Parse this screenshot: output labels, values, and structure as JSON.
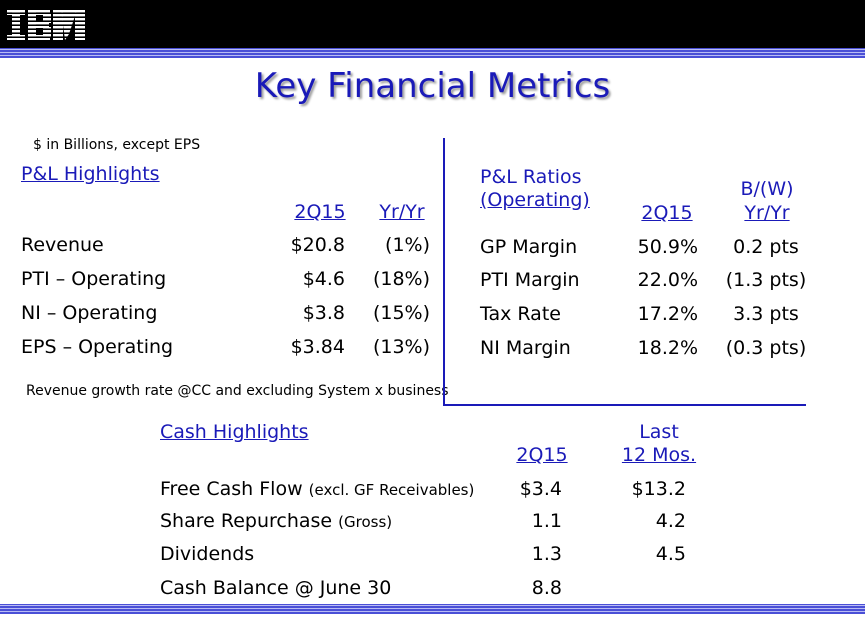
{
  "header": {
    "logo_text": "IBM"
  },
  "title": "Key Financial Metrics",
  "units_note": "$ in Billions, except EPS",
  "pl": {
    "heading": "P&L Highlights",
    "col1": "2Q15",
    "col2": "Yr/Yr",
    "rows": [
      {
        "label": "Revenue",
        "v1": "$20.8",
        "v2": "(1%)"
      },
      {
        "label": "PTI – Operating",
        "v1": "$4.6",
        "v2": "(18%)"
      },
      {
        "label": "NI – Operating",
        "v1": "$3.8",
        "v2": "(15%)"
      },
      {
        "label": "EPS – Operating",
        "v1": "$3.84",
        "v2": "(13%)"
      }
    ],
    "footnote": "Revenue growth rate @CC and excluding System x business"
  },
  "ratios": {
    "heading_line1": "P&L Ratios",
    "heading_line2": "(Operating)",
    "col1": "2Q15",
    "col2_line1": "B/(W)",
    "col2_line2": "Yr/Yr",
    "rows": [
      {
        "label": "GP Margin",
        "v1": "50.9%",
        "v2": "0.2 pts"
      },
      {
        "label": "PTI Margin",
        "v1": "22.0%",
        "v2": "(1.3 pts)"
      },
      {
        "label": "Tax Rate",
        "v1": "17.2%",
        "v2": "3.3 pts"
      },
      {
        "label": "NI Margin",
        "v1": "18.2%",
        "v2": "(0.3 pts)"
      }
    ]
  },
  "cash": {
    "heading": "Cash Highlights",
    "col1": "2Q15",
    "col2_line1": "Last",
    "col2_line2": "12 Mos.",
    "rows": [
      {
        "label": "Free Cash Flow",
        "note": "(excl. GF Receivables)",
        "v1": "$3.4",
        "v2": "$13.2"
      },
      {
        "label": "Share Repurchase",
        "note": "(Gross)",
        "v1": "1.1",
        "v2": "4.2"
      },
      {
        "label": "Dividends",
        "note": "",
        "v1": "1.3",
        "v2": "4.5"
      },
      {
        "label": "Cash Balance @ June 30",
        "note": "",
        "v1": "8.8",
        "v2": ""
      }
    ]
  }
}
